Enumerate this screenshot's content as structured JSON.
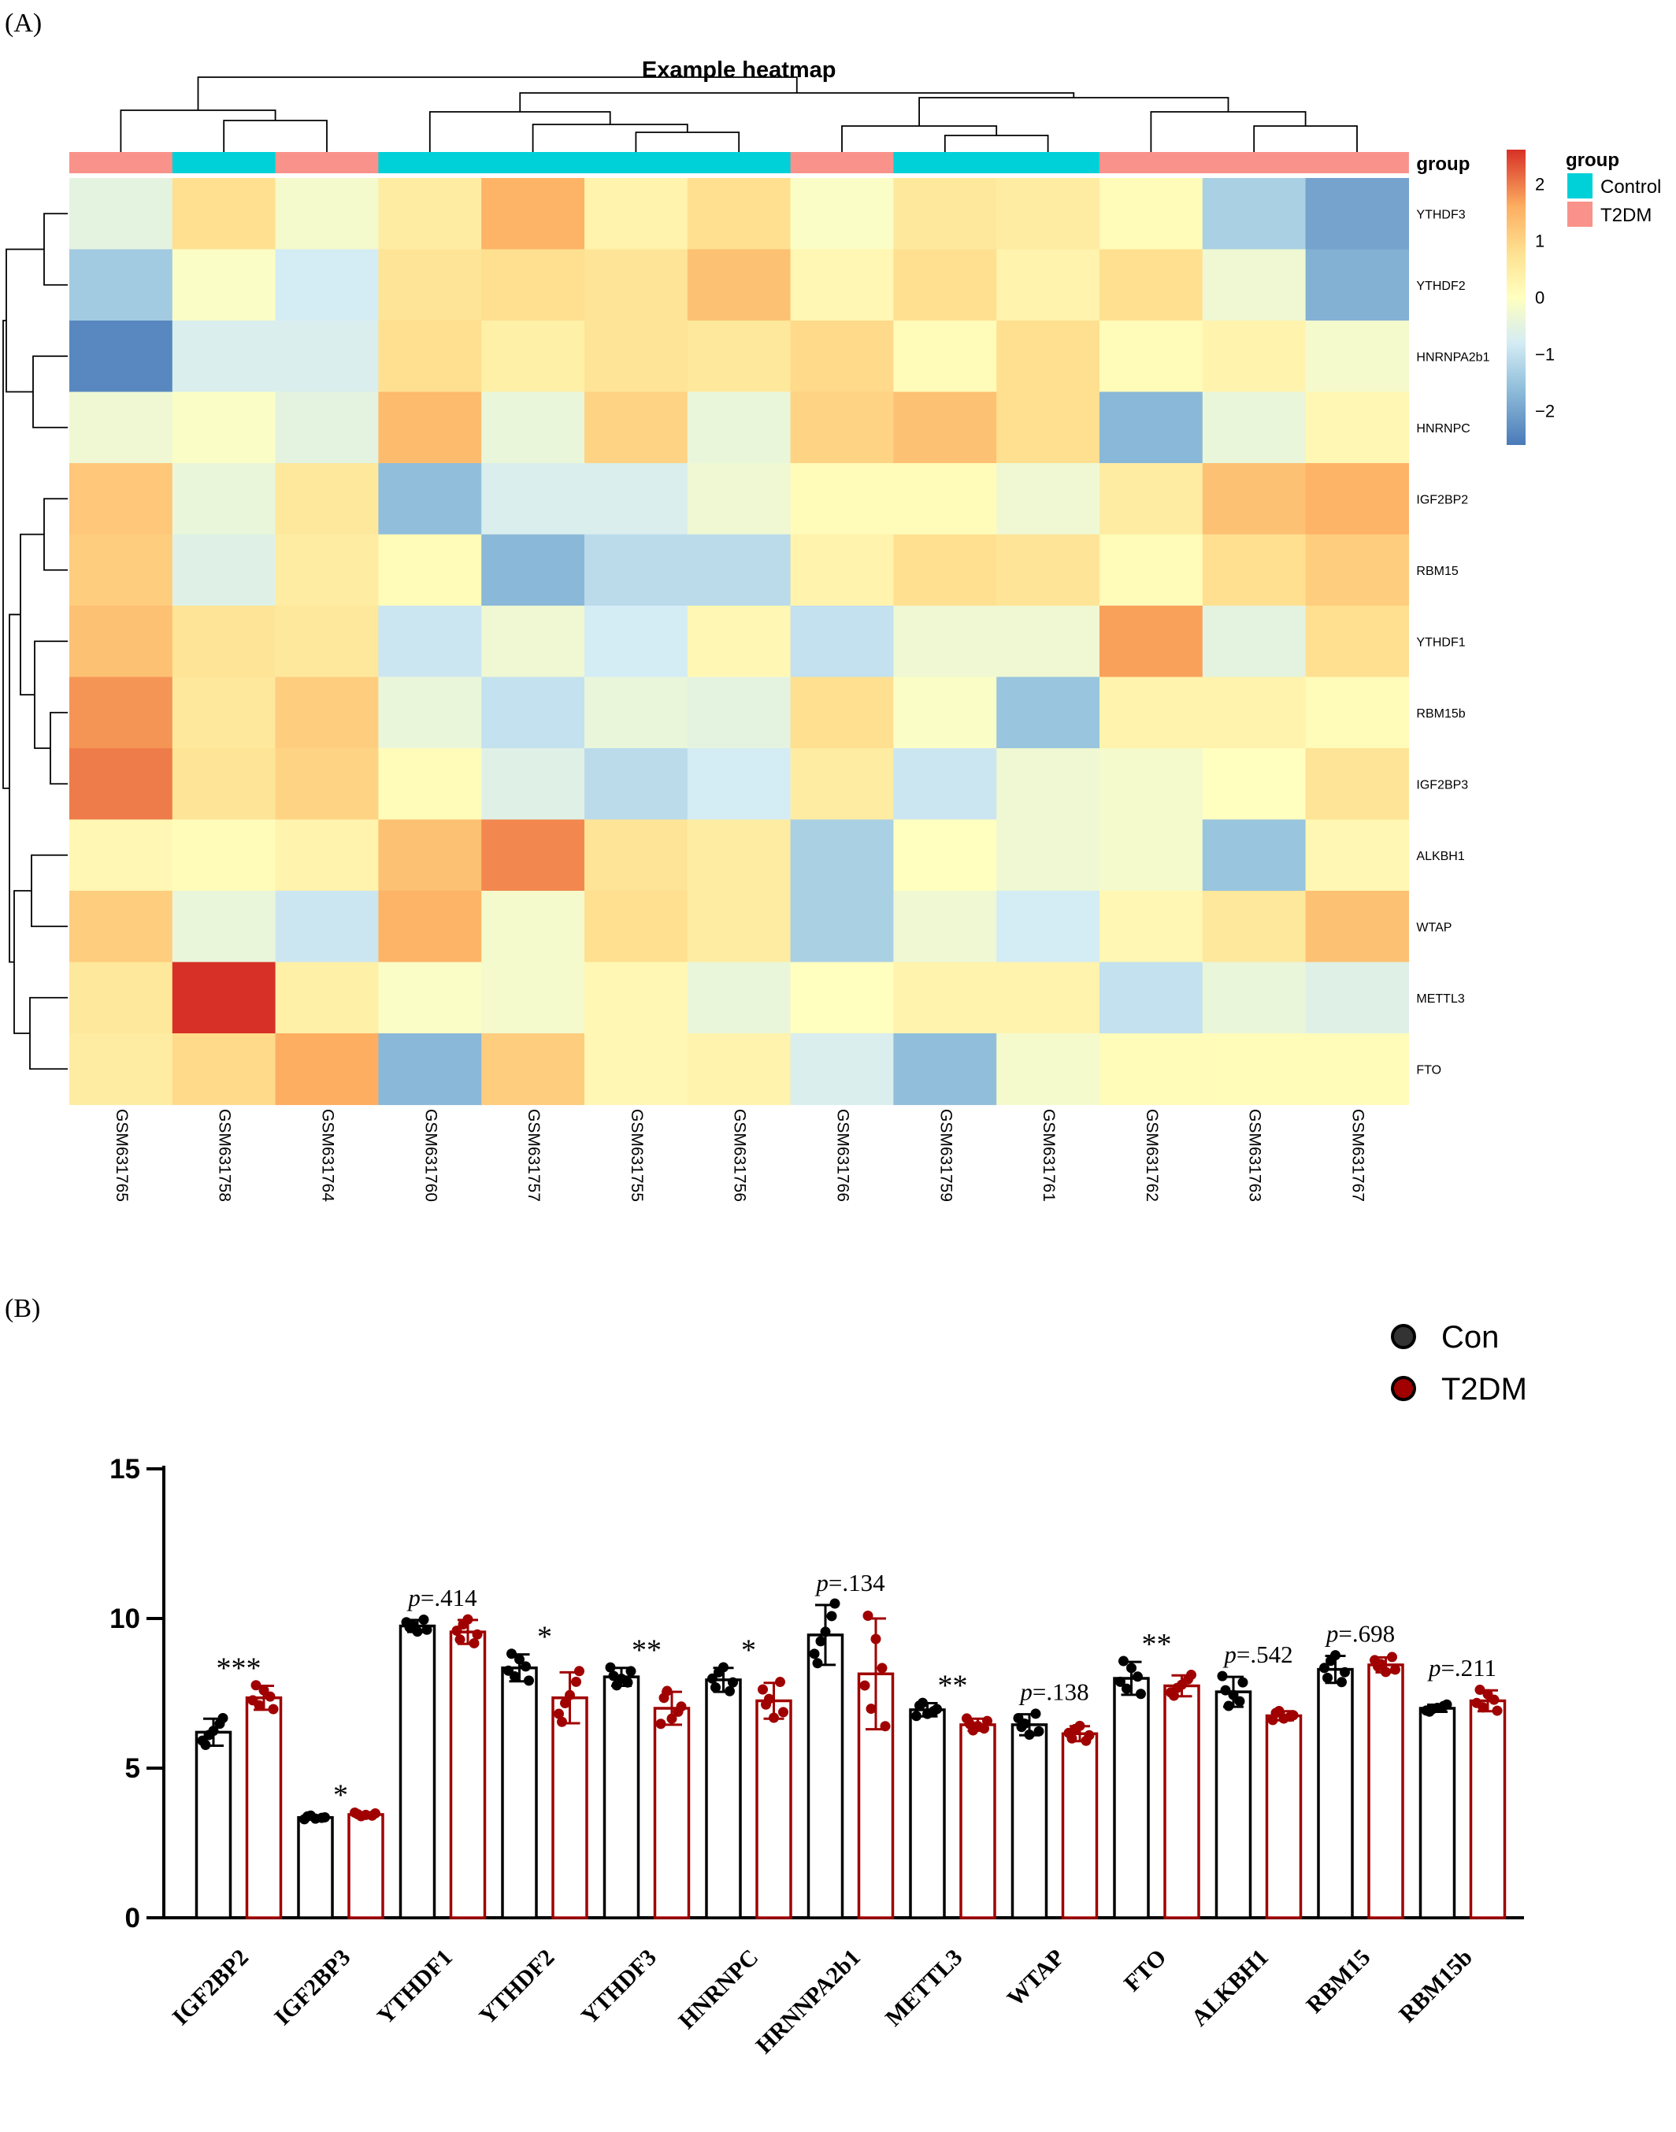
{
  "panel_a_label": "(A)",
  "panel_b_label": "(B)",
  "chart_data": [
    {
      "type": "heatmap",
      "title": "Example heatmap",
      "columns": [
        "GSM631765",
        "GSM631758",
        "GSM631764",
        "GSM631760",
        "GSM631757",
        "GSM631755",
        "GSM631756",
        "GSM631766",
        "GSM631759",
        "GSM631761",
        "GSM631762",
        "GSM631763",
        "GSM631767"
      ],
      "rows": [
        "YTHDF3",
        "YTHDF2",
        "HNRNPA2b1",
        "HNRNPC",
        "IGF2BP2",
        "RBM15",
        "YTHDF1",
        "RBM15b",
        "IGF2BP3",
        "ALKBH1",
        "WTAP",
        "METTL3",
        "FTO"
      ],
      "column_groups": [
        "T2DM",
        "Control",
        "T2DM",
        "Control",
        "Control",
        "Control",
        "Control",
        "T2DM",
        "Control",
        "Control",
        "T2DM",
        "T2DM",
        "T2DM"
      ],
      "values": [
        [
          -0.5,
          0.8,
          -0.2,
          0.5,
          1.5,
          0.3,
          0.8,
          -0.1,
          0.6,
          0.5,
          0.1,
          -1.3,
          -2.0
        ],
        [
          -1.4,
          -0.1,
          -0.8,
          0.7,
          0.8,
          0.7,
          1.3,
          0.2,
          0.8,
          0.3,
          0.8,
          -0.3,
          -1.8
        ],
        [
          -2.4,
          -0.7,
          -0.7,
          0.8,
          0.4,
          0.7,
          0.6,
          0.9,
          0.1,
          0.8,
          0.1,
          0.3,
          -0.2
        ],
        [
          -0.3,
          -0.1,
          -0.5,
          1.4,
          -0.4,
          1.0,
          -0.4,
          1.0,
          1.3,
          0.8,
          -1.7,
          -0.4,
          0.2
        ],
        [
          1.2,
          -0.4,
          0.6,
          -1.6,
          -0.7,
          -0.7,
          -0.3,
          0.1,
          0.1,
          -0.3,
          0.5,
          1.3,
          1.5
        ],
        [
          1.1,
          -0.6,
          0.5,
          0.1,
          -1.7,
          -1.1,
          -1.1,
          0.3,
          0.8,
          0.7,
          0.1,
          0.8,
          1.1
        ],
        [
          1.3,
          0.7,
          0.6,
          -0.9,
          -0.3,
          -0.8,
          0.2,
          -1.0,
          -0.3,
          -0.3,
          1.7,
          -0.5,
          0.8
        ],
        [
          1.8,
          0.6,
          1.1,
          -0.4,
          -1.0,
          -0.4,
          -0.5,
          0.8,
          -0.1,
          -1.5,
          0.3,
          0.3,
          0.1
        ],
        [
          2.0,
          0.7,
          1.0,
          0.1,
          -0.6,
          -1.1,
          -0.8,
          0.5,
          -0.9,
          -0.3,
          -0.2,
          0.0,
          0.7
        ],
        [
          0.2,
          0.1,
          0.3,
          1.3,
          1.9,
          0.7,
          0.5,
          -1.3,
          0.0,
          -0.3,
          -0.2,
          -1.5,
          0.2
        ],
        [
          1.1,
          -0.4,
          -0.9,
          1.5,
          -0.2,
          0.8,
          0.5,
          -1.3,
          -0.3,
          -0.8,
          0.2,
          0.6,
          1.3
        ],
        [
          0.6,
          2.6,
          0.4,
          -0.1,
          -0.2,
          0.2,
          -0.4,
          0.0,
          0.3,
          0.3,
          -1.0,
          -0.4,
          -0.6
        ],
        [
          0.5,
          0.9,
          1.6,
          -1.7,
          1.1,
          0.2,
          0.3,
          -0.7,
          -1.6,
          -0.2,
          0.1,
          0.1,
          0.1
        ]
      ],
      "colorbar_ticks": [
        -2,
        -1,
        0,
        1,
        2
      ],
      "colorbar_tick_labels": [
        "−2",
        "−1",
        "0",
        "1",
        "2"
      ],
      "colors": {
        "low": "#4a7ab8",
        "mid": "#ffffbf",
        "high": "#d73027"
      },
      "legend": {
        "title": "group",
        "annotation_label": "group",
        "items": [
          {
            "name": "Control",
            "color": "#00d0d8"
          },
          {
            "name": "T2DM",
            "color": "#f8928a"
          }
        ]
      }
    },
    {
      "type": "bar",
      "categories": [
        "IGF2BP2",
        "IGF2BP3",
        "YTHDF1",
        "YTHDF2",
        "YTHDF3",
        "HNRNPC",
        "HRNNPA2b1",
        "METTL3",
        "WTAP",
        "FTO",
        "ALKBH1",
        "RBM15",
        "RBM15b"
      ],
      "series": [
        {
          "name": "Con",
          "values": [
            6.2,
            3.35,
            9.75,
            8.35,
            8.05,
            7.95,
            9.45,
            6.95,
            6.45,
            8.0,
            7.55,
            8.3,
            7.0
          ],
          "errors": [
            0.45,
            0.06,
            0.2,
            0.45,
            0.3,
            0.4,
            1.0,
            0.22,
            0.35,
            0.55,
            0.5,
            0.45,
            0.12
          ],
          "color": "#000000"
        },
        {
          "name": "T2DM",
          "values": [
            7.35,
            3.45,
            9.55,
            7.35,
            7.0,
            7.25,
            8.15,
            6.45,
            6.15,
            7.75,
            6.75,
            8.45,
            7.25
          ],
          "errors": [
            0.4,
            0.06,
            0.4,
            0.85,
            0.55,
            0.6,
            1.85,
            0.2,
            0.25,
            0.35,
            0.15,
            0.25,
            0.35
          ],
          "color": "#a00000"
        }
      ],
      "annotations": [
        "***",
        "*",
        "p=.414",
        "*",
        "**",
        "*",
        "p=.134",
        "**",
        "p=.138",
        "**",
        "p=.542",
        "p=.698",
        "p=.211"
      ],
      "ylim": [
        0,
        15
      ],
      "yticks": [
        0,
        5,
        10,
        15
      ],
      "xlabel": "",
      "ylabel": "",
      "legend_position": "top-right"
    }
  ]
}
